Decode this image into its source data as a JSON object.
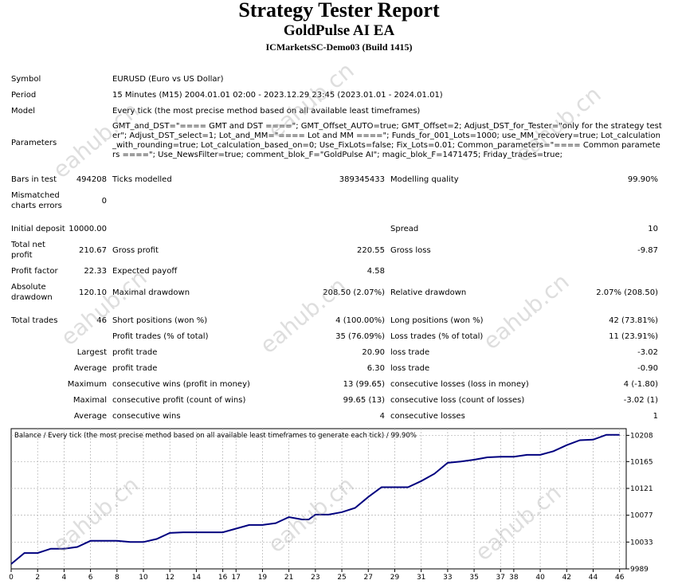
{
  "header": {
    "title": "Strategy Tester Report",
    "subtitle": "GoldPulse AI EA",
    "server": "ICMarketsSC-Demo03 (Build 1415)"
  },
  "info": {
    "symbol_label": "Symbol",
    "symbol": "EURUSD (Euro vs US Dollar)",
    "period_label": "Period",
    "period": "15 Minutes (M15) 2004.01.01 02:00 - 2023.12.29 23:45 (2023.01.01 - 2024.01.01)",
    "model_label": "Model",
    "model": "Every tick (the most precise method based on all available least timeframes)",
    "parameters_label": "Parameters",
    "parameters": "GMT_and_DST=\"==== GMT and DST ====\"; GMT_Offset_AUTO=true; GMT_Offset=2; Adjust_DST_for_Tester=\"only for the strategy tester\"; Adjust_DST_select=1; Lot_and_MM=\"==== Lot and MM ====\"; Funds_for_001_Lots=1000; use_MM_recovery=true; Lot_calculation_with_rounding=true; Lot_calculation_based_on=0; Use_FixLots=false; Fix_Lots=0.01; Common_parameters=\"==== Common parameters ====\"; Use_NewsFilter=true; comment_blok_F=\"GoldPulse AI\"; magic_blok_F=1471475; Friday_trades=true;"
  },
  "stats": {
    "bars_label": "Bars in test",
    "bars": "494208",
    "ticks_label": "Ticks modelled",
    "ticks": "389345433",
    "quality_label": "Modelling quality",
    "quality": "99.90%",
    "mismatch_label_1": "Mismatched",
    "mismatch_label_2": "charts errors",
    "mismatch": "0",
    "deposit_label": "Initial deposit",
    "deposit": "10000.00",
    "spread_label": "Spread",
    "spread": "10",
    "net_label_1": "Total net",
    "net_label_2": "profit",
    "net": "210.67",
    "gross_profit_label": "Gross profit",
    "gross_profit": "220.55",
    "gross_loss_label": "Gross loss",
    "gross_loss": "-9.87",
    "pf_label": "Profit factor",
    "pf": "22.33",
    "ep_label": "Expected payoff",
    "ep": "4.58",
    "abs_dd_label_1": "Absolute",
    "abs_dd_label_2": "drawdown",
    "abs_dd": "120.10",
    "max_dd_label": "Maximal drawdown",
    "max_dd": "208.50 (2.07%)",
    "rel_dd_label": "Relative drawdown",
    "rel_dd": "2.07% (208.50)",
    "total_trades_label": "Total trades",
    "total_trades": "46",
    "short_label": "Short positions (won %)",
    "short": "4 (100.00%)",
    "long_label": "Long positions (won %)",
    "long": "42 (73.81%)",
    "profit_trades_label": "Profit trades (% of total)",
    "profit_trades": "35 (76.09%)",
    "loss_trades_label": "Loss trades (% of total)",
    "loss_trades": "11 (23.91%)",
    "largest_label": "Largest",
    "profit_trade_label": "profit trade",
    "loss_trade_label": "loss trade",
    "largest_profit": "20.90",
    "largest_loss": "-3.02",
    "average_label": "Average",
    "average_profit": "6.30",
    "average_loss": "-0.90",
    "maximum_label": "Maximum",
    "cons_wins_money_label": "consecutive wins (profit in money)",
    "cons_wins_money": "13 (99.65)",
    "cons_losses_money_label": "consecutive losses (loss in money)",
    "cons_losses_money": "4 (-1.80)",
    "maximal_label": "Maximal",
    "cons_profit_count_label": "consecutive profit (count of wins)",
    "cons_profit_count": "99.65 (13)",
    "cons_loss_count_label": "consecutive loss (count of losses)",
    "cons_loss_count": "-3.02 (1)",
    "average_label_2": "Average",
    "avg_cons_wins_label": "consecutive wins",
    "avg_cons_wins": "4",
    "avg_cons_losses_label": "consecutive losses",
    "avg_cons_losses": "1"
  },
  "watermark": "eahub.cn",
  "chart_data": {
    "type": "line",
    "title": "Balance / Every tick (the most precise method based on all available least timeframes to generate each tick) / 99.90%",
    "x_ticks": [
      0,
      2,
      4,
      6,
      8,
      10,
      12,
      14,
      16,
      17,
      19,
      21,
      23,
      25,
      27,
      29,
      31,
      33,
      35,
      37,
      38,
      40,
      42,
      44,
      46
    ],
    "y_ticks": [
      9989,
      10033,
      10077,
      10121,
      10165,
      10208
    ],
    "xlim": [
      0,
      46.5
    ],
    "ylim": [
      9989,
      10219
    ],
    "grid": true,
    "line_color": "#00007f",
    "series": [
      {
        "x": [
          0,
          1,
          2,
          3,
          4,
          5,
          6,
          7,
          8,
          9,
          10,
          11,
          12,
          13,
          14,
          15,
          16,
          17,
          18,
          19,
          20,
          21,
          22,
          22.5,
          23,
          24,
          25,
          26,
          27,
          28,
          29,
          30,
          31,
          32,
          33,
          34,
          35,
          36,
          37,
          38,
          39,
          40,
          41,
          42,
          43,
          44,
          45,
          46
        ],
        "values": [
          9997,
          10015,
          10015,
          10022,
          10022,
          10025,
          10035,
          10035,
          10035,
          10033,
          10033,
          10038,
          10048,
          10049,
          10049,
          10049,
          10049,
          10055,
          10061,
          10061,
          10064,
          10074,
          10070,
          10070,
          10078,
          10078,
          10082,
          10089,
          10107,
          10123,
          10123,
          10123,
          10133,
          10145,
          10163,
          10165,
          10168,
          10172,
          10173,
          10173,
          10176,
          10176,
          10182,
          10192,
          10200,
          10201,
          10209,
          10209
        ]
      }
    ]
  }
}
